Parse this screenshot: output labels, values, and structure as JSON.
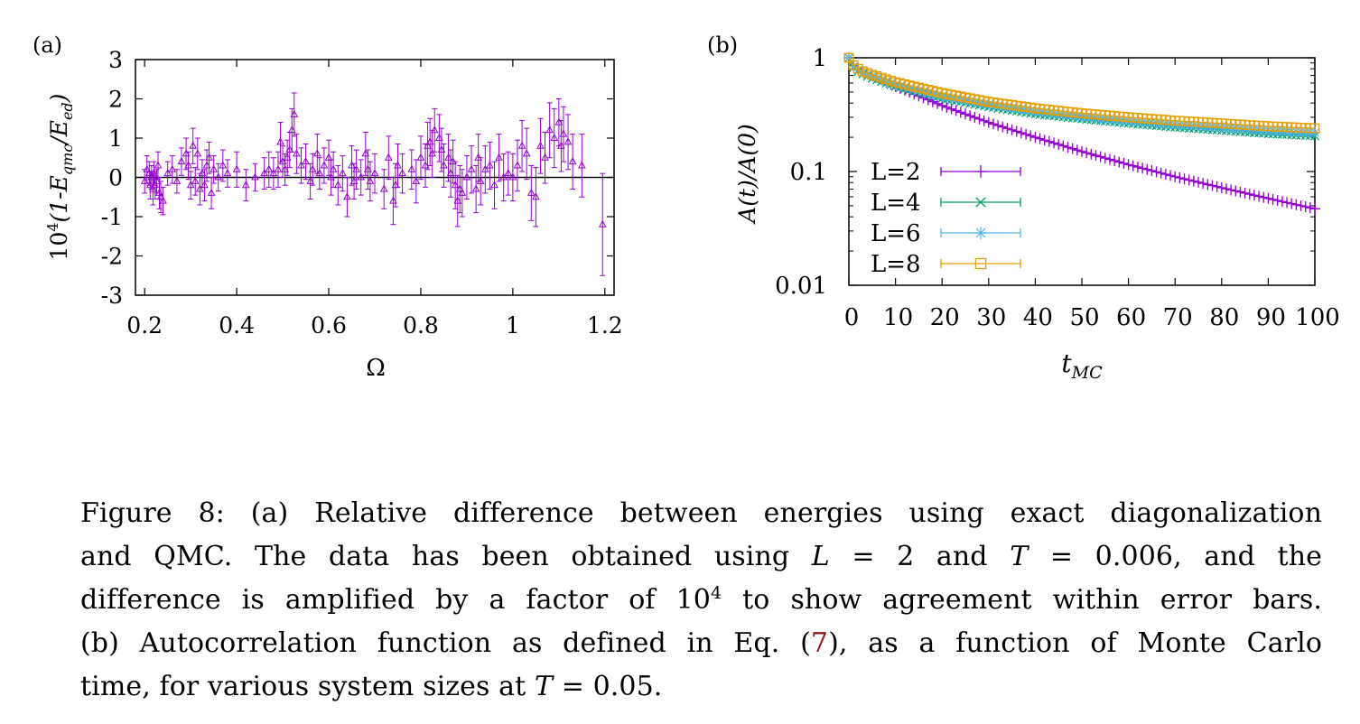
{
  "chart_data": [
    {
      "panel": "(a)",
      "type": "scatter",
      "xlabel": "Ω",
      "ylabel_parts": [
        "10",
        "4",
        "(1-E",
        "qmc",
        "/E",
        "ed",
        ")"
      ],
      "xlim": [
        0.18,
        1.22
      ],
      "ylim": [
        -3,
        3
      ],
      "xticks": [
        0.2,
        0.4,
        0.6,
        0.8,
        1,
        1.2
      ],
      "xtick_labels": [
        "0.2",
        "0.4",
        "0.6",
        "0.8",
        "1",
        "1.2"
      ],
      "yticks": [
        -3,
        -2,
        -1,
        0,
        1,
        2,
        3
      ],
      "ytick_labels": [
        "-3",
        "-2",
        "-1",
        "0",
        "1",
        "2",
        "3"
      ],
      "zero_line": true,
      "marker": "triangle",
      "color": "#9400d3",
      "points": [
        [
          0.2,
          -0.1,
          0.3
        ],
        [
          0.205,
          0.2,
          0.35
        ],
        [
          0.21,
          0.1,
          0.3
        ],
        [
          0.212,
          -0.2,
          0.35
        ],
        [
          0.215,
          0.0,
          0.3
        ],
        [
          0.218,
          -0.3,
          0.4
        ],
        [
          0.22,
          0.1,
          0.3
        ],
        [
          0.223,
          -0.2,
          0.35
        ],
        [
          0.226,
          -0.1,
          0.3
        ],
        [
          0.229,
          0.3,
          0.35
        ],
        [
          0.232,
          -0.4,
          0.4
        ],
        [
          0.235,
          -0.5,
          0.4
        ],
        [
          0.24,
          -0.6,
          0.35
        ],
        [
          0.25,
          0.1,
          0.3
        ],
        [
          0.26,
          0.2,
          0.35
        ],
        [
          0.27,
          -0.1,
          0.3
        ],
        [
          0.28,
          0.4,
          0.35
        ],
        [
          0.29,
          0.6,
          0.4
        ],
        [
          0.295,
          0.3,
          0.35
        ],
        [
          0.3,
          -0.2,
          0.35
        ],
        [
          0.305,
          0.8,
          0.45
        ],
        [
          0.31,
          -0.1,
          0.35
        ],
        [
          0.315,
          0.6,
          0.4
        ],
        [
          0.32,
          -0.3,
          0.4
        ],
        [
          0.325,
          0.1,
          0.35
        ],
        [
          0.33,
          -0.2,
          0.4
        ],
        [
          0.335,
          0.3,
          0.4
        ],
        [
          0.34,
          0.5,
          0.4
        ],
        [
          0.345,
          -0.4,
          0.4
        ],
        [
          0.35,
          0.2,
          0.35
        ],
        [
          0.36,
          0.0,
          0.35
        ],
        [
          0.37,
          0.3,
          0.4
        ],
        [
          0.38,
          0.1,
          0.35
        ],
        [
          0.4,
          0.2,
          0.45
        ],
        [
          0.42,
          -0.2,
          0.4
        ],
        [
          0.44,
          0.0,
          0.35
        ],
        [
          0.46,
          0.1,
          0.4
        ],
        [
          0.47,
          0.2,
          0.45
        ],
        [
          0.48,
          0.1,
          0.4
        ],
        [
          0.49,
          0.2,
          0.45
        ],
        [
          0.495,
          0.9,
          0.5
        ],
        [
          0.5,
          0.4,
          0.4
        ],
        [
          0.505,
          0.2,
          0.4
        ],
        [
          0.51,
          0.5,
          0.45
        ],
        [
          0.515,
          0.7,
          0.45
        ],
        [
          0.52,
          1.2,
          0.55
        ],
        [
          0.525,
          1.6,
          0.55
        ],
        [
          0.53,
          0.6,
          0.5
        ],
        [
          0.54,
          0.3,
          0.45
        ],
        [
          0.55,
          0.4,
          0.45
        ],
        [
          0.56,
          -0.1,
          0.45
        ],
        [
          0.565,
          0.2,
          0.4
        ],
        [
          0.575,
          0.6,
          0.5
        ],
        [
          0.58,
          0.1,
          0.4
        ],
        [
          0.59,
          0.3,
          0.45
        ],
        [
          0.6,
          0.5,
          0.45
        ],
        [
          0.605,
          0.0,
          0.45
        ],
        [
          0.61,
          0.2,
          0.45
        ],
        [
          0.62,
          -0.2,
          0.5
        ],
        [
          0.63,
          0.1,
          0.45
        ],
        [
          0.64,
          -0.5,
          0.5
        ],
        [
          0.65,
          0.3,
          0.5
        ],
        [
          0.655,
          -0.1,
          0.45
        ],
        [
          0.66,
          0.2,
          0.5
        ],
        [
          0.67,
          0.0,
          0.45
        ],
        [
          0.68,
          0.6,
          0.55
        ],
        [
          0.685,
          0.2,
          0.5
        ],
        [
          0.69,
          -0.1,
          0.5
        ],
        [
          0.7,
          0.1,
          0.5
        ],
        [
          0.72,
          -0.3,
          0.5
        ],
        [
          0.73,
          0.5,
          0.55
        ],
        [
          0.74,
          -0.6,
          0.6
        ],
        [
          0.745,
          -0.2,
          0.55
        ],
        [
          0.75,
          0.3,
          0.55
        ],
        [
          0.76,
          0.1,
          0.5
        ],
        [
          0.78,
          0.2,
          0.5
        ],
        [
          0.79,
          -0.1,
          0.55
        ],
        [
          0.8,
          0.5,
          0.55
        ],
        [
          0.81,
          0.3,
          0.55
        ],
        [
          0.815,
          0.8,
          0.6
        ],
        [
          0.82,
          0.9,
          0.6
        ],
        [
          0.825,
          0.6,
          0.6
        ],
        [
          0.83,
          1.2,
          0.55
        ],
        [
          0.84,
          1.0,
          0.6
        ],
        [
          0.845,
          0.7,
          0.55
        ],
        [
          0.85,
          0.3,
          0.55
        ],
        [
          0.86,
          0.5,
          0.6
        ],
        [
          0.865,
          0.1,
          0.6
        ],
        [
          0.87,
          0.4,
          0.55
        ],
        [
          0.875,
          -0.2,
          0.6
        ],
        [
          0.88,
          -0.6,
          0.65
        ],
        [
          0.885,
          -0.3,
          0.6
        ],
        [
          0.89,
          -0.4,
          0.6
        ],
        [
          0.9,
          0.0,
          0.55
        ],
        [
          0.91,
          0.2,
          0.6
        ],
        [
          0.92,
          -0.3,
          0.6
        ],
        [
          0.925,
          0.5,
          0.6
        ],
        [
          0.93,
          -0.1,
          0.6
        ],
        [
          0.94,
          0.2,
          0.6
        ],
        [
          0.95,
          0.3,
          0.6
        ],
        [
          0.96,
          -0.2,
          0.6
        ],
        [
          0.97,
          0.5,
          0.6
        ],
        [
          0.98,
          0.0,
          0.6
        ],
        [
          0.99,
          0.1,
          0.55
        ],
        [
          1.0,
          0.0,
          0.6
        ],
        [
          1.01,
          0.3,
          0.65
        ],
        [
          1.02,
          0.8,
          0.65
        ],
        [
          1.03,
          0.6,
          0.65
        ],
        [
          1.04,
          -0.4,
          0.7
        ],
        [
          1.05,
          -0.5,
          0.75
        ],
        [
          1.06,
          0.8,
          0.7
        ],
        [
          1.07,
          0.5,
          0.65
        ],
        [
          1.08,
          1.2,
          0.7
        ],
        [
          1.09,
          1.0,
          0.75
        ],
        [
          1.1,
          1.4,
          0.6
        ],
        [
          1.105,
          0.8,
          0.65
        ],
        [
          1.11,
          1.1,
          0.7
        ],
        [
          1.12,
          0.9,
          0.7
        ],
        [
          1.13,
          0.4,
          0.7
        ],
        [
          1.15,
          0.3,
          0.8
        ],
        [
          1.195,
          -1.2,
          1.3
        ]
      ]
    },
    {
      "panel": "(b)",
      "type": "line",
      "xlabel_main": "t",
      "xlabel_sub": "MC",
      "ylabel": "A(t)/A(0)",
      "yscale": "log",
      "xlim": [
        0,
        100
      ],
      "ylim": [
        0.01,
        1
      ],
      "xticks": [
        0,
        10,
        20,
        30,
        40,
        50,
        60,
        70,
        80,
        90,
        100
      ],
      "xtick_labels": [
        "0",
        "10",
        "20",
        "30",
        "40",
        "50",
        "60",
        "70",
        "80",
        "90",
        "100"
      ],
      "yticks": [
        0.01,
        0.1,
        1
      ],
      "ytick_labels": [
        "0.01",
        "0.1",
        "1"
      ],
      "legend_position": "bottom-left",
      "series": [
        {
          "name": "L=2",
          "color": "#9400d3",
          "marker": "plus",
          "x": [
            0,
            1,
            2,
            3,
            5,
            10,
            20,
            30,
            40,
            50,
            60,
            70,
            80,
            90,
            100
          ],
          "values": [
            1.0,
            0.86,
            0.8,
            0.76,
            0.7,
            0.56,
            0.38,
            0.27,
            0.2,
            0.15,
            0.115,
            0.09,
            0.072,
            0.058,
            0.047
          ]
        },
        {
          "name": "L=4",
          "color": "#009e73",
          "marker": "cross",
          "x": [
            0,
            1,
            2,
            3,
            5,
            10,
            20,
            30,
            40,
            50,
            60,
            70,
            80,
            90,
            100
          ],
          "values": [
            1.0,
            0.82,
            0.76,
            0.72,
            0.66,
            0.56,
            0.44,
            0.37,
            0.32,
            0.29,
            0.265,
            0.245,
            0.23,
            0.215,
            0.205
          ]
        },
        {
          "name": "L=6",
          "color": "#56b4e9",
          "marker": "star",
          "x": [
            0,
            1,
            2,
            3,
            5,
            10,
            20,
            30,
            40,
            50,
            60,
            70,
            80,
            90,
            100
          ],
          "values": [
            1.0,
            0.84,
            0.78,
            0.74,
            0.69,
            0.58,
            0.46,
            0.39,
            0.34,
            0.305,
            0.28,
            0.26,
            0.245,
            0.23,
            0.22
          ]
        },
        {
          "name": "L=8",
          "color": "#e69f00",
          "marker": "square",
          "x": [
            0,
            1,
            2,
            3,
            5,
            10,
            20,
            30,
            40,
            50,
            60,
            70,
            80,
            90,
            100
          ],
          "values": [
            1.0,
            0.86,
            0.8,
            0.76,
            0.71,
            0.61,
            0.49,
            0.41,
            0.36,
            0.325,
            0.3,
            0.28,
            0.265,
            0.25,
            0.24
          ]
        }
      ]
    }
  ],
  "caption": {
    "line1": "Figure 8:  (a) Relative difference between energies using exact diagonalization",
    "line2_a": "and QMC. The data has been obtained using ",
    "line2_L": "L",
    "line2_b": " = 2 and ",
    "line2_T": "T",
    "line2_c": " = 0.006, and the",
    "line3_a": "difference is amplified by a factor of 10",
    "line3_sup": "4",
    "line3_b": " to show agreement within error bars.",
    "line4_a": "(b) Autocorrelation function as defined in Eq. (",
    "line4_ref": "7",
    "line4_b": "), as a function of Monte Carlo",
    "line5_a": "time, for various system sizes at ",
    "line5_T": "T",
    "line5_b": " = 0.05."
  }
}
